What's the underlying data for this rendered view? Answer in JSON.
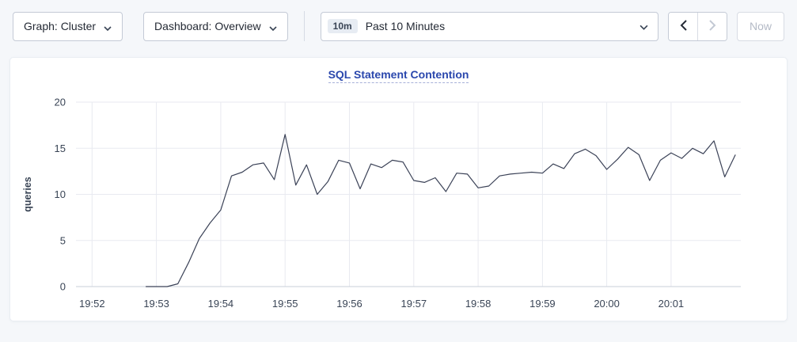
{
  "toolbar": {
    "graph_dropdown": {
      "label": "Graph: Cluster"
    },
    "dashboard_dropdown": {
      "label": "Dashboard: Overview"
    },
    "time_picker": {
      "badge": "10m",
      "value": "Past 10 Minutes"
    },
    "now_button": {
      "label": "Now"
    }
  },
  "chart_data": {
    "type": "line",
    "title": "SQL Statement Contention",
    "ylabel": "queries",
    "xlabel": "",
    "ylim": [
      0,
      20
    ],
    "y_ticks": [
      0,
      5,
      10,
      15,
      20
    ],
    "x_domain_s": [
      -15,
      605
    ],
    "x_ticks": [
      {
        "t": 0,
        "label": "19:52"
      },
      {
        "t": 60,
        "label": "19:53"
      },
      {
        "t": 120,
        "label": "19:54"
      },
      {
        "t": 180,
        "label": "19:55"
      },
      {
        "t": 240,
        "label": "19:56"
      },
      {
        "t": 300,
        "label": "19:57"
      },
      {
        "t": 360,
        "label": "19:58"
      },
      {
        "t": 420,
        "label": "19:59"
      },
      {
        "t": 480,
        "label": "20:00"
      },
      {
        "t": 540,
        "label": "20:01"
      }
    ],
    "grid": true,
    "legend": "none",
    "colors": {
      "line": "#3b4257",
      "grid": "#e8eaf0",
      "axis": "#c9cfda",
      "text": "#394455",
      "title": "#2a47ad"
    },
    "series": [
      {
        "name": "queries",
        "start_offset_s": 50,
        "step_s": 10,
        "values": [
          0,
          0,
          0,
          0.3,
          2.6,
          5.2,
          6.9,
          8.3,
          12.0,
          12.4,
          13.2,
          13.4,
          11.6,
          16.5,
          11.0,
          13.2,
          10.0,
          11.4,
          13.7,
          13.4,
          10.6,
          13.3,
          12.9,
          13.7,
          13.5,
          11.5,
          11.3,
          11.8,
          10.3,
          12.3,
          12.2,
          10.7,
          10.9,
          12.0,
          12.2,
          12.3,
          12.4,
          12.3,
          13.3,
          12.8,
          14.4,
          14.9,
          14.2,
          12.7,
          13.8,
          15.1,
          14.3,
          11.5,
          13.7,
          14.5,
          13.9,
          15.0,
          14.4,
          15.8,
          11.9,
          14.3
        ]
      }
    ]
  }
}
